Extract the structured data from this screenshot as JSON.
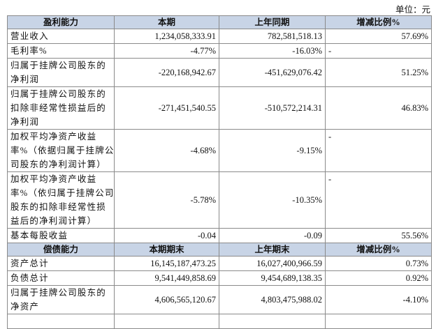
{
  "unit": "单位：元",
  "sections": [
    {
      "header": [
        "盈利能力",
        "本期",
        "上年同期",
        "增减比例%"
      ],
      "rows": [
        {
          "label": [
            "营业收入"
          ],
          "cells": [
            "1,234,058,333.91",
            "782,581,518.13",
            "57.69%"
          ]
        },
        {
          "label": [
            "毛利率%"
          ],
          "cells": [
            "-4.77%",
            "-16.03%",
            "-"
          ]
        },
        {
          "label": [
            "归属于挂牌公司股东的",
            "净利润"
          ],
          "cells": [
            "-220,168,942.67",
            "-451,629,076.42",
            "51.25%"
          ]
        },
        {
          "label": [
            "归属于挂牌公司股东的",
            "扣除非经常性损益后的",
            "净利润"
          ],
          "cells": [
            "-271,451,540.55",
            "-510,572,214.31",
            "46.83%"
          ]
        },
        {
          "label": [
            "加权平均净资产收益",
            "率%（依据归属于挂牌公",
            "司股东的净利润计算）"
          ],
          "cells": [
            "-4.68%",
            "-9.15%",
            "-"
          ]
        },
        {
          "label": [
            "加权平均净资产收益",
            "率%（依归属于挂牌公司",
            "股东的扣除非经常性损",
            "益后的净利润计算）"
          ],
          "cells": [
            "-5.78%",
            "-10.35%",
            "-"
          ]
        },
        {
          "label": [
            "基本每股收益"
          ],
          "cells": [
            "-0.04",
            "-0.09",
            "55.56%"
          ]
        }
      ]
    },
    {
      "header": [
        "偿债能力",
        "本期期末",
        "上年期末",
        "增减比例%"
      ],
      "rows": [
        {
          "label": [
            "资产总计"
          ],
          "cells": [
            "16,145,187,473.25",
            "16,027,400,966.59",
            "0.73%"
          ]
        },
        {
          "label": [
            "负债总计"
          ],
          "cells": [
            "9,541,449,858.69",
            "9,454,689,138.35",
            "0.92%"
          ]
        },
        {
          "label": [
            "归属于挂牌公司股东的",
            "净资产"
          ],
          "cells": [
            "4,606,565,120.67",
            "4,803,475,988.02",
            "-4.10%"
          ]
        }
      ]
    }
  ]
}
